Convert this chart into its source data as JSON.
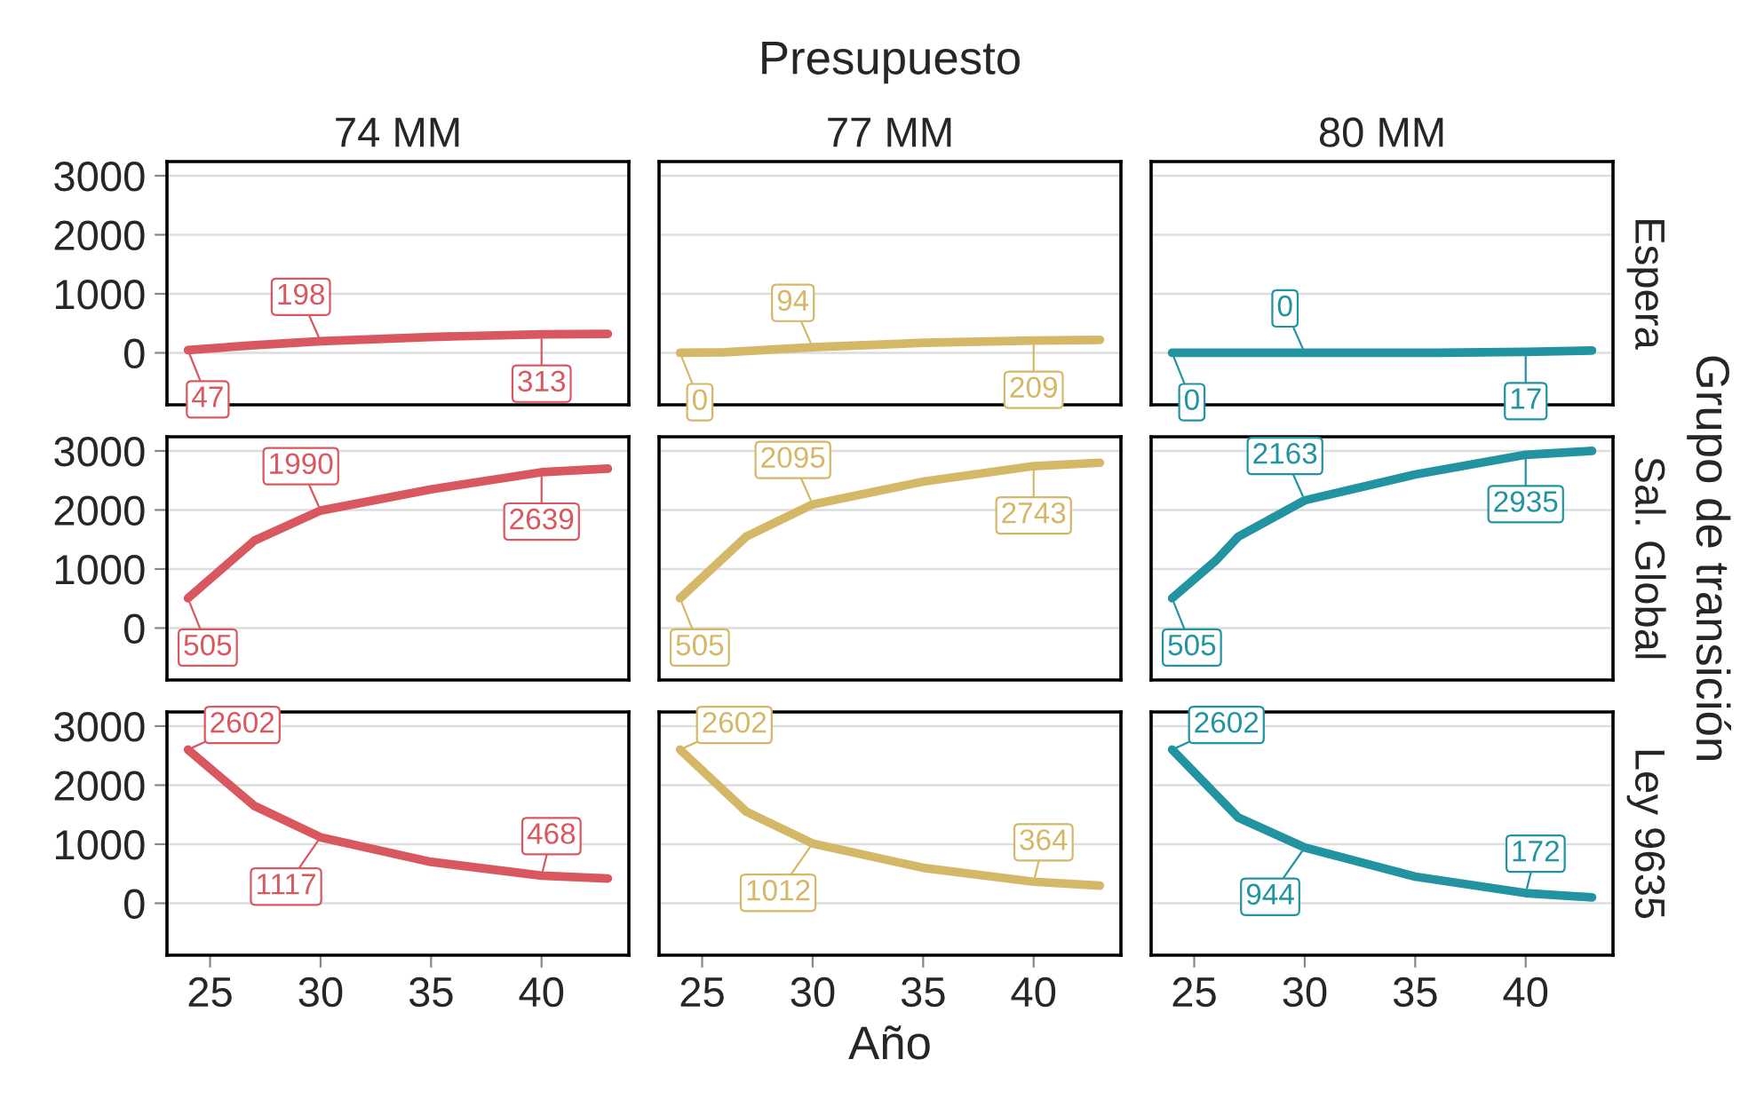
{
  "chart_data": [
    {
      "type": "line",
      "title": "74 MM",
      "x": [
        24,
        27,
        30,
        35,
        40,
        43
      ],
      "xlim": [
        23.05,
        43.95
      ],
      "xticks": [
        25,
        30,
        35,
        40
      ],
      "ylim": [
        -880,
        3240
      ],
      "yticks": [
        0,
        1000,
        2000,
        3000
      ],
      "grid": "y",
      "marker": "none",
      "tick_labels": "y",
      "series": [
        {
          "color": "#d9585f",
          "values": [
            47,
            130,
            198,
            270,
            313,
            320
          ],
          "value_labels": [
            "47",
            null,
            "198",
            null,
            "313",
            null
          ]
        }
      ]
    },
    {
      "type": "line",
      "title": "77 MM",
      "annotations": [
        "Presupuesto"
      ],
      "x": [
        24,
        26,
        30,
        35,
        40,
        43
      ],
      "xlim": [
        23.05,
        43.95
      ],
      "xticks": [
        25,
        30,
        35,
        40
      ],
      "ylim": [
        -880,
        3240
      ],
      "yticks": [
        0,
        1000,
        2000,
        3000
      ],
      "grid": "y",
      "marker": "none",
      "tick_labels": false,
      "series": [
        {
          "color": "#d4b868",
          "values": [
            0,
            10,
            94,
            170,
            209,
            220
          ],
          "value_labels": [
            "0",
            null,
            "94",
            null,
            "209",
            null
          ]
        }
      ]
    },
    {
      "type": "line",
      "title": "80 MM",
      "annotations": [
        "Espera"
      ],
      "x": [
        24,
        30,
        36,
        40,
        43
      ],
      "xlim": [
        23.05,
        43.95
      ],
      "xticks": [
        25,
        30,
        35,
        40
      ],
      "ylim": [
        -880,
        3240
      ],
      "yticks": [
        0,
        1000,
        2000,
        3000
      ],
      "grid": "y",
      "marker": "none",
      "tick_labels": false,
      "series": [
        {
          "color": "#2293a0",
          "values": [
            0,
            0,
            0,
            17,
            40
          ],
          "value_labels": [
            "0",
            "0",
            null,
            "17",
            null
          ]
        }
      ]
    },
    {
      "type": "line",
      "x": [
        24,
        27,
        30,
        35,
        40,
        43
      ],
      "xlim": [
        23.05,
        43.95
      ],
      "xticks": [
        25,
        30,
        35,
        40
      ],
      "ylim": [
        -880,
        3240
      ],
      "yticks": [
        0,
        1000,
        2000,
        3000
      ],
      "grid": "y",
      "marker": "none",
      "tick_labels": "y",
      "series": [
        {
          "color": "#d9585f",
          "values": [
            505,
            1480,
            1990,
            2350,
            2639,
            2700
          ],
          "value_labels": [
            "505",
            null,
            "1990",
            null,
            "2639",
            null
          ]
        }
      ]
    },
    {
      "type": "line",
      "x": [
        24,
        27,
        30,
        35,
        40,
        43
      ],
      "xlim": [
        23.05,
        43.95
      ],
      "xticks": [
        25,
        30,
        35,
        40
      ],
      "ylim": [
        -880,
        3240
      ],
      "yticks": [
        0,
        1000,
        2000,
        3000
      ],
      "grid": "y",
      "marker": "none",
      "tick_labels": false,
      "series": [
        {
          "color": "#d4b868",
          "values": [
            505,
            1550,
            2095,
            2480,
            2743,
            2800
          ],
          "value_labels": [
            "505",
            null,
            "2095",
            null,
            "2743",
            null
          ]
        }
      ]
    },
    {
      "type": "line",
      "annotations": [
        "Sal. Global",
        "Grupo de transición"
      ],
      "x": [
        24,
        26,
        27,
        30,
        35,
        40,
        43
      ],
      "xlim": [
        23.05,
        43.95
      ],
      "xticks": [
        25,
        30,
        35,
        40
      ],
      "ylim": [
        -880,
        3240
      ],
      "yticks": [
        0,
        1000,
        2000,
        3000
      ],
      "grid": "y",
      "marker": "none",
      "tick_labels": false,
      "series": [
        {
          "color": "#2293a0",
          "values": [
            505,
            1150,
            1550,
            2163,
            2600,
            2935,
            3000
          ],
          "value_labels": [
            "505",
            null,
            null,
            "2163",
            null,
            "2935",
            null
          ]
        }
      ]
    },
    {
      "type": "line",
      "x": [
        24,
        27,
        30,
        35,
        40,
        43
      ],
      "xlim": [
        23.05,
        43.95
      ],
      "xticks": [
        25,
        30,
        35,
        40
      ],
      "ylim": [
        -880,
        3240
      ],
      "yticks": [
        0,
        1000,
        2000,
        3000
      ],
      "grid": "y",
      "marker": "none",
      "series": [
        {
          "color": "#d9585f",
          "values": [
            2602,
            1650,
            1117,
            700,
            468,
            420
          ],
          "value_labels": [
            "2602",
            null,
            "1117",
            null,
            "468",
            null
          ]
        }
      ]
    },
    {
      "type": "line",
      "xlabel": "Año",
      "x": [
        24,
        27,
        30,
        35,
        40,
        43
      ],
      "xlim": [
        23.05,
        43.95
      ],
      "xticks": [
        25,
        30,
        35,
        40
      ],
      "ylim": [
        -880,
        3240
      ],
      "yticks": [
        0,
        1000,
        2000,
        3000
      ],
      "grid": "y",
      "marker": "none",
      "tick_labels": "x",
      "series": [
        {
          "color": "#d4b868",
          "values": [
            2602,
            1550,
            1012,
            600,
            364,
            300
          ],
          "value_labels": [
            "2602",
            null,
            "1012",
            null,
            "364",
            null
          ]
        }
      ]
    },
    {
      "type": "line",
      "annotations": [
        "Ley 9635"
      ],
      "x": [
        24,
        27,
        30,
        35,
        40,
        43
      ],
      "xlim": [
        23.05,
        43.95
      ],
      "xticks": [
        25,
        30,
        35,
        40
      ],
      "ylim": [
        -880,
        3240
      ],
      "yticks": [
        0,
        1000,
        2000,
        3000
      ],
      "grid": "y",
      "marker": "none",
      "tick_labels": "x",
      "series": [
        {
          "color": "#2293a0",
          "values": [
            2602,
            1450,
            944,
            450,
            172,
            100
          ],
          "value_labels": [
            "2602",
            null,
            "944",
            null,
            "172",
            null
          ]
        }
      ]
    }
  ]
}
